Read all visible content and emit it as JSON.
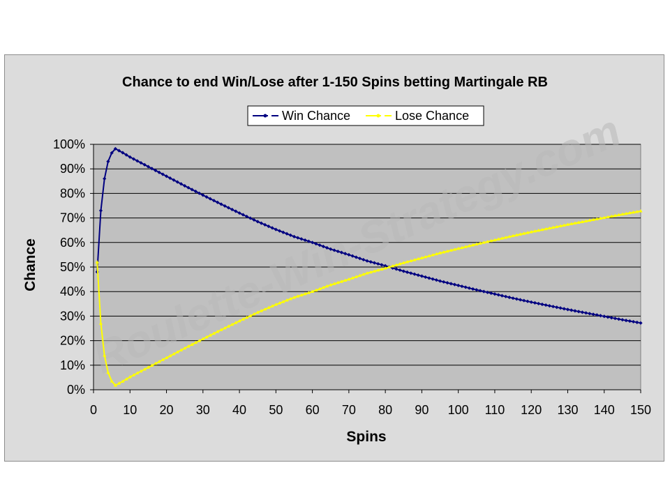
{
  "watermark": "Roulette-Win-Strategy.com",
  "chart_data": {
    "type": "line",
    "title": "Chance to end Win/Lose after 1-150 Spins betting Martingale RB",
    "xlabel": "Spins",
    "ylabel": "Chance",
    "xlim": [
      0,
      150
    ],
    "ylim": [
      0,
      100
    ],
    "x_ticks": [
      "0",
      "10",
      "20",
      "30",
      "40",
      "50",
      "60",
      "70",
      "80",
      "90",
      "100",
      "110",
      "120",
      "130",
      "140",
      "150"
    ],
    "y_ticks": [
      "0%",
      "10%",
      "20%",
      "30%",
      "40%",
      "50%",
      "60%",
      "70%",
      "80%",
      "90%",
      "100%"
    ],
    "grid": "horizontal",
    "legend_position": "top",
    "colors": {
      "plot_background": "#c0c0c0",
      "chart_background": "#dcdcdc",
      "win": "#000080",
      "lose": "#ffff00"
    },
    "series": [
      {
        "name": "Win Chance",
        "color": "#000080",
        "points": [
          [
            1,
            48
          ],
          [
            2,
            73
          ],
          [
            3,
            86
          ],
          [
            4,
            93
          ],
          [
            5,
            96.5
          ],
          [
            6,
            98.2
          ],
          [
            8,
            96.6
          ],
          [
            10,
            94.8
          ],
          [
            15,
            90.9
          ],
          [
            20,
            87.0
          ],
          [
            25,
            83.1
          ],
          [
            30,
            79.3
          ],
          [
            35,
            75.6
          ],
          [
            40,
            72.0
          ],
          [
            45,
            68.5
          ],
          [
            50,
            65.3
          ],
          [
            55,
            62.4
          ],
          [
            60,
            60.0
          ],
          [
            65,
            57.3
          ],
          [
            70,
            55.0
          ],
          [
            75,
            52.5
          ],
          [
            80,
            50.5
          ],
          [
            85,
            48.3
          ],
          [
            90,
            46.3
          ],
          [
            95,
            44.3
          ],
          [
            100,
            42.5
          ],
          [
            105,
            40.7
          ],
          [
            110,
            39.0
          ],
          [
            115,
            37.3
          ],
          [
            120,
            35.7
          ],
          [
            125,
            34.2
          ],
          [
            130,
            32.7
          ],
          [
            135,
            31.3
          ],
          [
            140,
            29.9
          ],
          [
            145,
            28.5
          ],
          [
            150,
            27.2
          ]
        ]
      },
      {
        "name": "Lose Chance",
        "color": "#ffff00",
        "points": [
          [
            1,
            52
          ],
          [
            2,
            27
          ],
          [
            3,
            14
          ],
          [
            4,
            7
          ],
          [
            5,
            3.5
          ],
          [
            6,
            1.8
          ],
          [
            8,
            3.4
          ],
          [
            10,
            5.2
          ],
          [
            15,
            9.1
          ],
          [
            20,
            13.0
          ],
          [
            25,
            16.9
          ],
          [
            30,
            20.7
          ],
          [
            35,
            24.4
          ],
          [
            40,
            28.0
          ],
          [
            45,
            31.5
          ],
          [
            50,
            34.7
          ],
          [
            55,
            37.6
          ],
          [
            60,
            40.0
          ],
          [
            65,
            42.7
          ],
          [
            70,
            45.0
          ],
          [
            75,
            47.5
          ],
          [
            80,
            49.5
          ],
          [
            85,
            51.7
          ],
          [
            90,
            53.7
          ],
          [
            95,
            55.7
          ],
          [
            100,
            57.5
          ],
          [
            105,
            59.3
          ],
          [
            110,
            61.0
          ],
          [
            115,
            62.7
          ],
          [
            120,
            64.3
          ],
          [
            125,
            65.8
          ],
          [
            130,
            67.3
          ],
          [
            135,
            68.7
          ],
          [
            140,
            70.1
          ],
          [
            145,
            71.5
          ],
          [
            150,
            72.8
          ]
        ]
      }
    ]
  }
}
